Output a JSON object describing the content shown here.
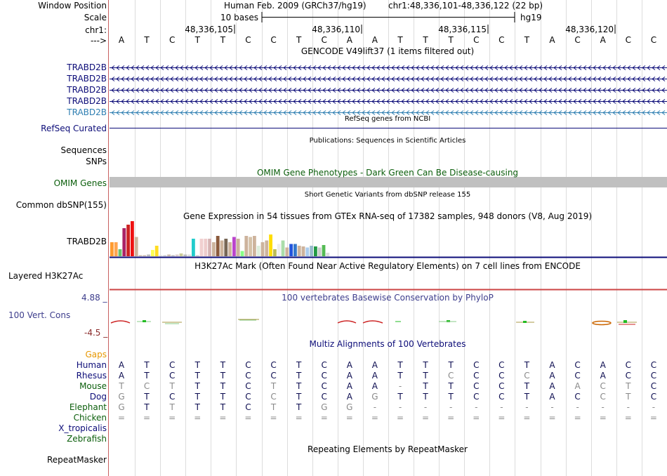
{
  "header": {
    "window_position_label": "Window Position",
    "scale_label": "Scale",
    "chrom_label": "chr1:",
    "strand_label": "--->",
    "assembly_title": "Human Feb. 2009 (GRCh37/hg19)",
    "position": "chr1:48,336,101-48,336,122 (22 bp)",
    "scale_text": "10 bases",
    "scale_assembly": "hg19",
    "ticks": [
      "48,336,105",
      "48,336,110",
      "48,336,115",
      "48,336,120"
    ]
  },
  "sequence": [
    "A",
    "T",
    "C",
    "T",
    "T",
    "C",
    "C",
    "T",
    "C",
    "A",
    "A",
    "T",
    "T",
    "T",
    "C",
    "C",
    "T",
    "A",
    "C",
    "A",
    "C",
    "C"
  ],
  "gencode": {
    "title": "GENCODE V49lift37 (1 items filtered out)",
    "tracks": [
      "TRABD2B",
      "TRABD2B",
      "TRABD2B",
      "TRABD2B",
      "TRABD2B"
    ],
    "color": "#0c0c78",
    "last_color": "#2f7fb2"
  },
  "refseq": {
    "title": "RefSeq genes from NCBI",
    "label": "RefSeq Curated",
    "color": "#0c0c78"
  },
  "publications": {
    "title": "Publications: Sequences in Scientific Articles",
    "seq_label": "Sequences",
    "snp_label": "SNPs"
  },
  "omim": {
    "title": "OMIM Gene Phenotypes - Dark Green Can Be Disease-causing",
    "label": "OMIM Genes",
    "color": "#0b5e0b"
  },
  "dbsnp": {
    "title": "Short Genetic Variants from dbSNP release 155",
    "label": "Common dbSNP(155)"
  },
  "gtex": {
    "title": "Gene Expression in 54 tissues from GTEx RNA-seq of 17382 samples, 948 donors (V8, Aug 2019)",
    "label": "TRABD2B",
    "bars": [
      {
        "v": 0.4,
        "c": "#ff9b2f"
      },
      {
        "v": 0.4,
        "c": "#ffa54f"
      },
      {
        "v": 0.2,
        "c": "#6cbf6c"
      },
      {
        "v": 0.8,
        "c": "#aa2266"
      },
      {
        "v": 0.9,
        "c": "#cc2222"
      },
      {
        "v": 1.0,
        "c": "#ee1111"
      },
      {
        "v": 0.55,
        "c": "#cdb39c"
      },
      {
        "v": 0.03,
        "c": "#ccbbaa"
      },
      {
        "v": 0.03,
        "c": "#ccbbaa"
      },
      {
        "v": 0.05,
        "c": "#bbbbbb"
      },
      {
        "v": 0.18,
        "c": "#ffff55"
      },
      {
        "v": 0.3,
        "c": "#ffdd22"
      },
      {
        "v": 0.03,
        "c": "#dddddd"
      },
      {
        "v": 0.03,
        "c": "#cccccc"
      },
      {
        "v": 0.05,
        "c": "#ccbbaa"
      },
      {
        "v": 0.03,
        "c": "#bbbbbb"
      },
      {
        "v": 0.05,
        "c": "#ddcccc"
      },
      {
        "v": 0.08,
        "c": "#cccc99"
      },
      {
        "v": 0.05,
        "c": "#bbbbbb"
      },
      {
        "v": 0.05,
        "c": "#dddddd"
      },
      {
        "v": 0.5,
        "c": "#22cccc"
      },
      {
        "v": 0.03,
        "c": "#cccccc"
      },
      {
        "v": 0.5,
        "c": "#f1d0d0"
      },
      {
        "v": 0.5,
        "c": "#eecccc"
      },
      {
        "v": 0.5,
        "c": "#d6b4b4"
      },
      {
        "v": 0.4,
        "c": "#cdb39c"
      },
      {
        "v": 0.58,
        "c": "#8b5a3c"
      },
      {
        "v": 0.45,
        "c": "#cdb39c"
      },
      {
        "v": 0.5,
        "c": "#776655"
      },
      {
        "v": 0.4,
        "c": "#cdb39c"
      },
      {
        "v": 0.55,
        "c": "#bb44cc"
      },
      {
        "v": 0.5,
        "c": "#cdb39c"
      },
      {
        "v": 0.15,
        "c": "#88ff88"
      },
      {
        "v": 0.58,
        "c": "#cdb39c"
      },
      {
        "v": 0.55,
        "c": "#d5c2a8"
      },
      {
        "v": 0.58,
        "c": "#cdb39c"
      },
      {
        "v": 0.3,
        "c": "#ddeedd"
      },
      {
        "v": 0.4,
        "c": "#cdb39c"
      },
      {
        "v": 0.45,
        "c": "#cdb39c"
      },
      {
        "v": 0.62,
        "c": "#ffdd00"
      },
      {
        "v": 0.2,
        "c": "#bbbb55"
      },
      {
        "v": 0.35,
        "c": "#eeeeee"
      },
      {
        "v": 0.45,
        "c": "#aaddaa"
      },
      {
        "v": 0.25,
        "c": "#cdb39c"
      },
      {
        "v": 0.35,
        "c": "#2255dd"
      },
      {
        "v": 0.35,
        "c": "#3377cc"
      },
      {
        "v": 0.3,
        "c": "#cdb39c"
      },
      {
        "v": 0.28,
        "c": "#cdb39c"
      },
      {
        "v": 0.25,
        "c": "#aaccee"
      },
      {
        "v": 0.3,
        "c": "#99bbcc"
      },
      {
        "v": 0.28,
        "c": "#229944"
      },
      {
        "v": 0.25,
        "c": "#cccccc"
      },
      {
        "v": 0.32,
        "c": "#55bb55"
      },
      {
        "v": 0.1,
        "c": "#dddddd"
      }
    ]
  },
  "h3k27ac": {
    "title": "H3K27Ac Mark (Often Found Near Active Regulatory Elements) on 7 cell lines from ENCODE",
    "label": "Layered H3K27Ac"
  },
  "phylop": {
    "title": "100 vertebrates Basewise Conservation by PhyloP",
    "label": "100 Vert. Cons",
    "max_label": "4.88 _",
    "min_label": "-4.5 _",
    "color": "#3d3d8c",
    "neg_color": "#8a2a2a"
  },
  "multiz": {
    "title": "Multiz Alignments of 100 Vertebrates",
    "gaps_label": "Gaps",
    "gaps_color": "#e79700",
    "species": [
      {
        "name": "Human",
        "color": "#0c0c78",
        "seq": [
          "A",
          "T",
          "C",
          "T",
          "T",
          "C",
          "C",
          "T",
          "C",
          "A",
          "A",
          "T",
          "T",
          "T",
          "C",
          "C",
          "T",
          "A",
          "C",
          "A",
          "C",
          "C"
        ],
        "grey": []
      },
      {
        "name": "Rhesus",
        "color": "#0c0c78",
        "seq": [
          "A",
          "T",
          "C",
          "T",
          "T",
          "C",
          "C",
          "T",
          "C",
          "A",
          "A",
          "T",
          "T",
          "C",
          "C",
          "C",
          "C",
          "A",
          "C",
          "A",
          "C",
          "C"
        ],
        "grey": [
          13,
          16
        ]
      },
      {
        "name": "Mouse",
        "color": "#0b5e0b",
        "seq": [
          "T",
          "C",
          "T",
          "T",
          "T",
          "C",
          "T",
          "T",
          "C",
          "A",
          "A",
          "-",
          "T",
          "T",
          "C",
          "C",
          "T",
          "A",
          "A",
          "C",
          "T",
          "C"
        ],
        "grey": [
          0,
          1,
          2,
          6,
          11,
          18,
          19,
          20
        ]
      },
      {
        "name": "Dog",
        "color": "#0c0c78",
        "seq": [
          "G",
          "T",
          "C",
          "T",
          "T",
          "C",
          "C",
          "T",
          "C",
          "A",
          "G",
          "T",
          "T",
          "T",
          "C",
          "C",
          "T",
          "A",
          "C",
          "C",
          "T",
          "C"
        ],
        "grey": [
          0,
          6,
          10,
          19,
          20
        ]
      },
      {
        "name": "Elephant",
        "color": "#0b5e0b",
        "seq": [
          "G",
          "T",
          "T",
          "T",
          "T",
          "C",
          "T",
          "T",
          "G",
          "G",
          "-",
          "-",
          "-",
          "-",
          "-",
          "-",
          "-",
          "-",
          "-",
          "-",
          "-",
          "-"
        ],
        "grey": [
          0,
          2,
          6,
          8,
          9,
          10,
          11,
          12,
          13,
          14,
          15,
          16,
          17,
          18,
          19,
          20,
          21
        ]
      },
      {
        "name": "Chicken",
        "color": "#0b5e0b",
        "seq": [
          "=",
          "=",
          "=",
          "=",
          "=",
          "=",
          "=",
          "=",
          "=",
          "=",
          "=",
          "=",
          "=",
          "=",
          "=",
          "=",
          "=",
          "=",
          "=",
          "=",
          "=",
          "="
        ],
        "grey": [
          0,
          1,
          2,
          3,
          4,
          5,
          6,
          7,
          8,
          9,
          10,
          11,
          12,
          13,
          14,
          15,
          16,
          17,
          18,
          19,
          20,
          21
        ]
      },
      {
        "name": "X_tropicalis",
        "color": "#0c0c78",
        "seq": [],
        "grey": []
      },
      {
        "name": "Zebrafish",
        "color": "#0b5e0b",
        "seq": [],
        "grey": []
      }
    ]
  },
  "repeatmasker": {
    "title": "Repeating Elements by RepeatMasker",
    "label": "RepeatMasker"
  }
}
